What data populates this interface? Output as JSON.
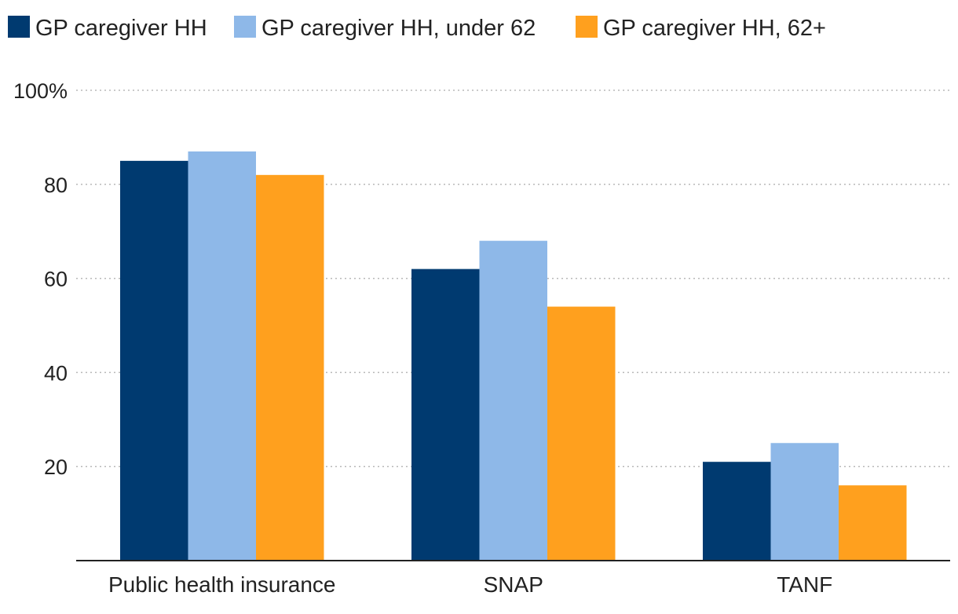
{
  "chart_data": {
    "type": "bar",
    "title": "",
    "xlabel": "",
    "ylabel": "",
    "ylim": [
      0,
      100
    ],
    "yticks": [
      20,
      40,
      60,
      80,
      100
    ],
    "ytick_labels": [
      "20",
      "40",
      "60",
      "80",
      "100%"
    ],
    "grid": true,
    "legend_position": "top-left",
    "categories": [
      "Public health insurance",
      "SNAP",
      "TANF"
    ],
    "series": [
      {
        "name": "GP caregiver HH",
        "color": "#003A70",
        "values": [
          85,
          62,
          21
        ]
      },
      {
        "name": "GP caregiver HH, under 62",
        "color": "#8EB8E8",
        "values": [
          87,
          68,
          25
        ]
      },
      {
        "name": "GP caregiver HH, 62+",
        "color": "#FFA01E",
        "values": [
          82,
          54,
          16
        ]
      }
    ]
  }
}
